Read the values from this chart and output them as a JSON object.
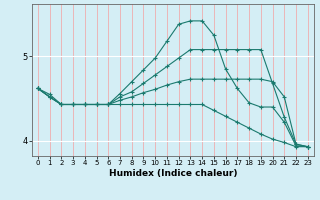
{
  "xlabel": "Humidex (Indice chaleur)",
  "ylabel": "",
  "bg_color": "#d4eef5",
  "line_color": "#1a7a6e",
  "grid_color": "#ffffff",
  "grid_vcolor": "#f5a0a0",
  "xlim": [
    -0.5,
    23.5
  ],
  "ylim": [
    3.82,
    5.62
  ],
  "yticks": [
    4,
    5
  ],
  "xticks": [
    0,
    1,
    2,
    3,
    4,
    5,
    6,
    7,
    8,
    9,
    10,
    11,
    12,
    13,
    14,
    15,
    16,
    17,
    18,
    19,
    20,
    21,
    22,
    23
  ],
  "series": [
    {
      "x": [
        0,
        1,
        2,
        3,
        4,
        5,
        6,
        7,
        8,
        9,
        10,
        11,
        12,
        13,
        14,
        15,
        16,
        17,
        18,
        19,
        20,
        21,
        22,
        23
      ],
      "y": [
        4.62,
        4.55,
        4.43,
        4.43,
        4.43,
        4.43,
        4.43,
        4.56,
        4.7,
        4.84,
        4.98,
        5.18,
        5.38,
        5.42,
        5.42,
        5.25,
        4.85,
        4.62,
        4.45,
        4.4,
        4.4,
        4.22,
        3.94,
        3.93
      ]
    },
    {
      "x": [
        0,
        1,
        2,
        3,
        4,
        5,
        6,
        7,
        8,
        9,
        10,
        11,
        12,
        13,
        14,
        15,
        16,
        17,
        18,
        19,
        20,
        21,
        22,
        23
      ],
      "y": [
        4.62,
        4.52,
        4.43,
        4.43,
        4.43,
        4.43,
        4.43,
        4.52,
        4.58,
        4.68,
        4.78,
        4.88,
        4.98,
        5.08,
        5.08,
        5.08,
        5.08,
        5.08,
        5.08,
        5.08,
        4.68,
        4.28,
        3.96,
        3.93
      ]
    },
    {
      "x": [
        0,
        1,
        2,
        3,
        4,
        5,
        6,
        7,
        8,
        9,
        10,
        11,
        12,
        13,
        14,
        15,
        16,
        17,
        18,
        19,
        20,
        21,
        22,
        23
      ],
      "y": [
        4.62,
        4.52,
        4.43,
        4.43,
        4.43,
        4.43,
        4.43,
        4.48,
        4.52,
        4.57,
        4.61,
        4.66,
        4.7,
        4.73,
        4.73,
        4.73,
        4.73,
        4.73,
        4.73,
        4.73,
        4.7,
        4.52,
        3.96,
        3.93
      ]
    },
    {
      "x": [
        0,
        1,
        2,
        3,
        4,
        5,
        6,
        7,
        8,
        9,
        10,
        11,
        12,
        13,
        14,
        15,
        16,
        17,
        18,
        19,
        20,
        21,
        22,
        23
      ],
      "y": [
        4.62,
        4.52,
        4.43,
        4.43,
        4.43,
        4.43,
        4.43,
        4.43,
        4.43,
        4.43,
        4.43,
        4.43,
        4.43,
        4.43,
        4.43,
        4.36,
        4.29,
        4.22,
        4.15,
        4.08,
        4.02,
        3.98,
        3.93,
        3.93
      ]
    }
  ]
}
